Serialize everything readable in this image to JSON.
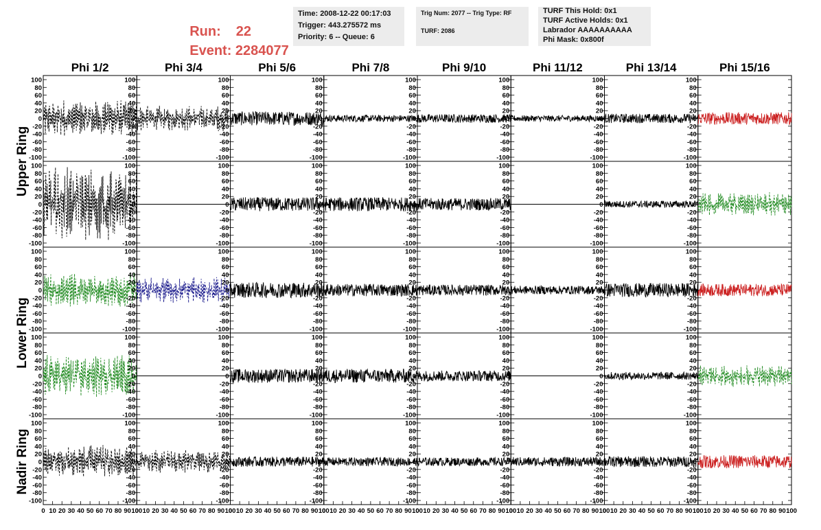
{
  "header": {
    "run_label": "Run:",
    "run_value": "22",
    "event_label": "Event:",
    "event_value": "2284077",
    "run_color": "#d9534f",
    "time_box": {
      "time": "Time: 2008-12-22 00:17:03",
      "trigger": "Trigger: 443.275572 ms",
      "priority": "Priority: 6 -- Queue: 6"
    },
    "trig_box": {
      "trig": "Trig Num: 2077 -- Trig Type: RF",
      "turf": "TURF: 2086"
    },
    "turf_box": {
      "this_hold": "TURF This Hold: 0x1",
      "active_holds": "TURF Active Holds: 0x1",
      "labrador": "Labrador AAAAAAAAAA",
      "phi_mask": "Phi Mask: 0x800f"
    }
  },
  "chart_data": {
    "type": "line",
    "columns": [
      "Phi 1/2",
      "Phi 3/4",
      "Phi 5/6",
      "Phi 7/8",
      "Phi 9/10",
      "Phi 11/12",
      "Phi 13/14",
      "Phi 15/16"
    ],
    "row_groups": [
      "Upper Ring",
      "Lower Ring",
      "Nadir Ring"
    ],
    "ylim": [
      -100,
      100
    ],
    "xlim": [
      0,
      100
    ],
    "y_ticks": [
      "100",
      "80",
      "60",
      "40",
      "20",
      "0",
      "-20",
      "-40",
      "-60",
      "-80",
      "-100"
    ],
    "x_ticks": [
      "0",
      "10",
      "20",
      "30",
      "40",
      "50",
      "60",
      "70",
      "80",
      "90",
      "100"
    ],
    "colors": {
      "black": "#000000",
      "red": "#cc2222",
      "green": "#1f8a1f",
      "blue": "#1a1a8c"
    },
    "panels": [
      [
        {
          "style": "black_dashed",
          "amp": 38
        },
        {
          "style": "black_dashed",
          "amp": 26
        },
        {
          "style": "black",
          "amp": 18
        },
        {
          "style": "black",
          "amp": 9
        },
        {
          "style": "black",
          "amp": 11
        },
        {
          "style": "black",
          "amp": 8
        },
        {
          "style": "black",
          "amp": 12
        },
        {
          "style": "red",
          "amp": 16
        }
      ],
      [
        {
          "style": "black_dashed",
          "amp": 75
        },
        {
          "style": "flat",
          "amp": 0
        },
        {
          "style": "black",
          "amp": 18
        },
        {
          "style": "black",
          "amp": 18
        },
        {
          "style": "black",
          "amp": 16
        },
        {
          "style": "flat",
          "amp": 0
        },
        {
          "style": "black",
          "amp": 9
        },
        {
          "style": "green_dashed",
          "amp": 24
        }
      ],
      [
        {
          "style": "green_dashed",
          "amp": 36
        },
        {
          "style": "blue_dashed",
          "amp": 26
        },
        {
          "style": "black",
          "amp": 20
        },
        {
          "style": "black",
          "amp": 16
        },
        {
          "style": "black",
          "amp": 14
        },
        {
          "style": "black",
          "amp": 11
        },
        {
          "style": "black",
          "amp": 18
        },
        {
          "style": "red",
          "amp": 16
        }
      ],
      [
        {
          "style": "green_dashed",
          "amp": 44
        },
        {
          "style": "flat",
          "amp": 0
        },
        {
          "style": "black",
          "amp": 18
        },
        {
          "style": "black",
          "amp": 18
        },
        {
          "style": "black",
          "amp": 14
        },
        {
          "style": "flat",
          "amp": 0
        },
        {
          "style": "black",
          "amp": 10
        },
        {
          "style": "green_dashed",
          "amp": 22
        }
      ],
      [
        {
          "style": "black_dashed",
          "amp": 34
        },
        {
          "style": "black_dashed",
          "amp": 24
        },
        {
          "style": "black",
          "amp": 13
        },
        {
          "style": "black",
          "amp": 11
        },
        {
          "style": "black",
          "amp": 11
        },
        {
          "style": "black",
          "amp": 12
        },
        {
          "style": "black",
          "amp": 14
        },
        {
          "style": "red",
          "amp": 17
        }
      ]
    ]
  }
}
